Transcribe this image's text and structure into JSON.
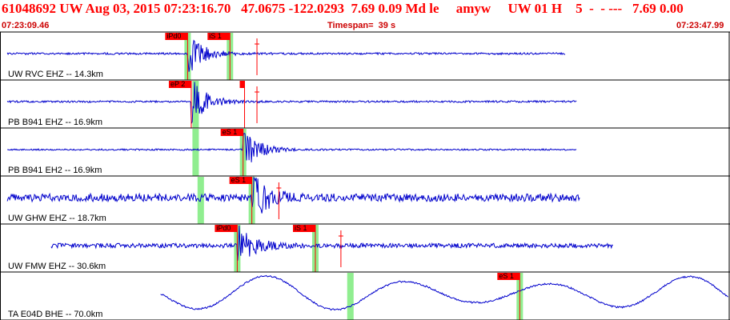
{
  "header": {
    "event_line": "61048692 UW Aug 03, 2015 07:23:16.70   47.0675 -122.0293  7.69 0.09 Md le     amyw     UW 01 H    5  -  - ---   7.69 0.00",
    "start_time": "07:23:09.46",
    "timespan": "Timespan=  39 s",
    "end_time": "07:23:47.99"
  },
  "colors": {
    "header_text": "#ff0000",
    "trace": "#0000cc",
    "pick_box": "#ff0000",
    "pick_band": "#90ee90",
    "separator": "#000000"
  },
  "channels": [
    {
      "label": "UW RVC EHZ -- 14.3km",
      "amplitude": 0.15,
      "signal_start": 0.01,
      "signal_end": 0.775,
      "picks": [
        {
          "label": "iPd0",
          "time": 0.257
        },
        {
          "label": "iS 1",
          "time": 0.315
        }
      ],
      "bands": [
        0.257,
        0.315
      ],
      "theo_marks": [
        0.352
      ]
    },
    {
      "label": "PB B941 EHZ -- 16.9km",
      "amplitude": 0.15,
      "signal_start": 0.01,
      "signal_end": 0.79,
      "picks": [
        {
          "label": "eP 2",
          "time": 0.262
        },
        {
          "label": "",
          "time": 0.335
        }
      ],
      "bands": [
        0.268
      ],
      "theo_marks": [
        0.352
      ]
    },
    {
      "label": "PB B941 EH2 -- 16.9km",
      "amplitude": 0.12,
      "signal_start": 0.01,
      "signal_end": 0.79,
      "picks": [
        {
          "label": "eS 1",
          "time": 0.333
        }
      ],
      "bands": [
        0.268,
        0.333
      ],
      "theo_marks": []
    },
    {
      "label": "UW GHW EHZ -- 18.7km",
      "amplitude": 0.6,
      "signal_start": 0.01,
      "signal_end": 0.795,
      "picks": [
        {
          "label": "eS 1",
          "time": 0.345
        }
      ],
      "bands": [
        0.275,
        0.345
      ],
      "theo_marks": [
        0.382
      ]
    },
    {
      "label": "UW FMW EHZ -- 30.6km",
      "amplitude": 0.35,
      "signal_start": 0.07,
      "signal_end": 0.84,
      "picks": [
        {
          "label": "iPd0",
          "time": 0.325
        },
        {
          "label": "iS 1",
          "time": 0.432
        }
      ],
      "bands": [
        0.325,
        0.432
      ],
      "theo_marks": [
        0.467
      ]
    },
    {
      "label": "TA E04D BHE -- 70.0km",
      "amplitude": 0.7,
      "signal_start": 0.22,
      "signal_end": 0.998,
      "picks": [
        {
          "label": "eS 1",
          "time": 0.712
        }
      ],
      "bands": [
        0.48,
        0.712
      ],
      "theo_marks": []
    }
  ]
}
